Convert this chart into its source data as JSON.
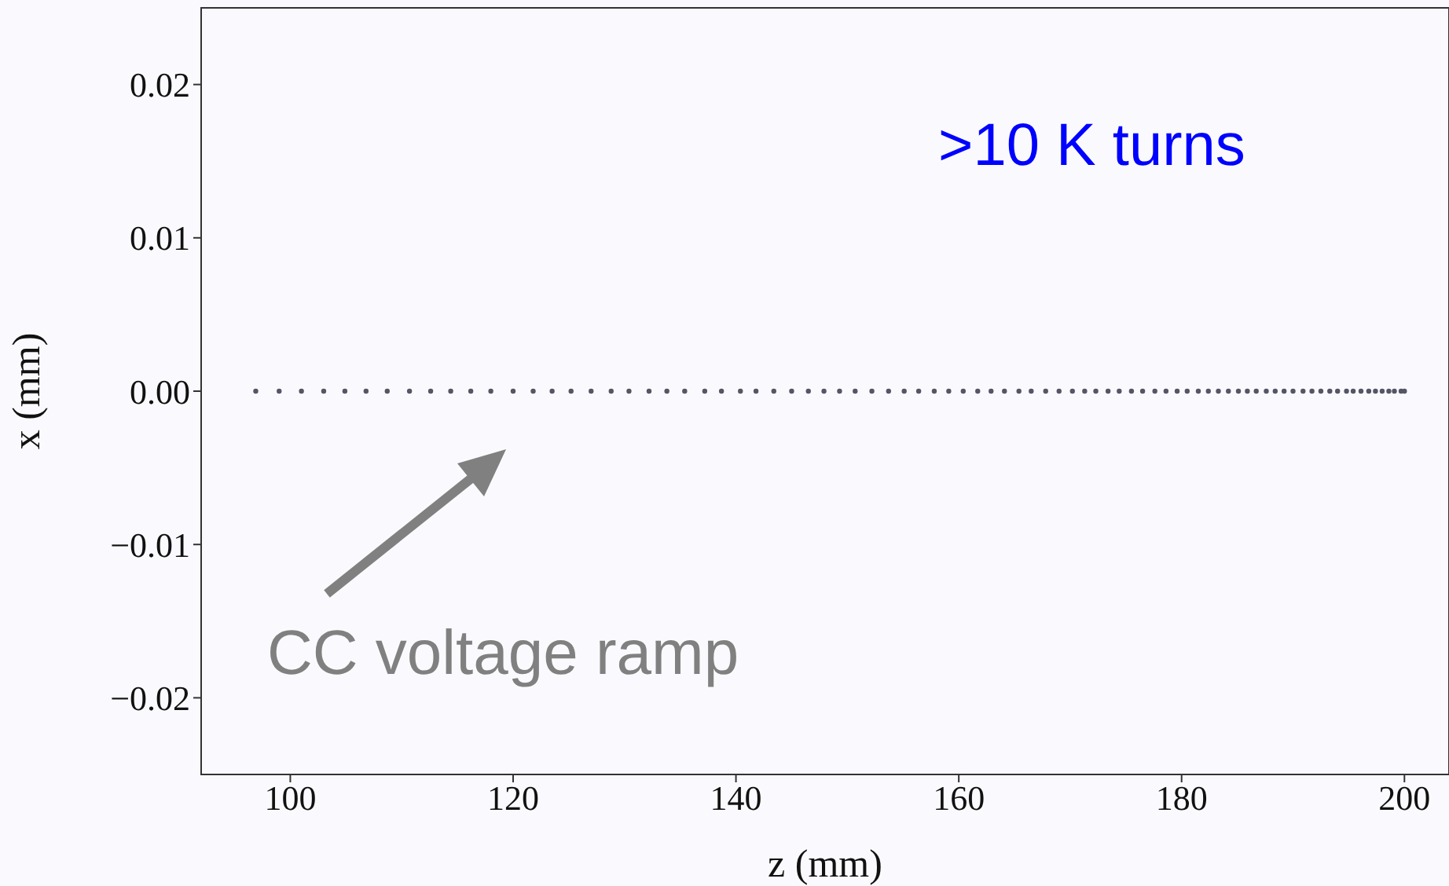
{
  "chart_data": {
    "type": "scatter",
    "xlabel": "z (mm)",
    "ylabel": "x (mm)",
    "x": [
      96.9,
      99.0,
      101.0,
      103.0,
      104.9,
      106.8,
      108.7,
      110.7,
      112.6,
      114.4,
      116.2,
      118.0,
      120.0,
      121.8,
      123.5,
      125.2,
      127.0,
      128.8,
      130.4,
      132.2,
      133.8,
      135.4,
      137.2,
      138.7,
      140.4,
      141.8,
      143.4,
      145.0,
      146.5,
      147.9,
      149.3,
      150.7,
      152.2,
      153.7,
      155.1,
      156.4,
      157.8,
      159.1,
      160.4,
      161.7,
      162.9,
      164.1,
      165.4,
      166.5,
      167.8,
      169.0,
      170.2,
      171.3,
      172.3,
      173.4,
      174.4,
      175.5,
      176.5,
      177.6,
      178.6,
      179.6,
      180.5,
      181.5,
      182.4,
      183.3,
      184.2,
      185.1,
      185.9,
      186.7,
      187.6,
      188.4,
      189.2,
      190.0,
      190.9,
      191.7,
      192.5,
      193.3,
      194.0,
      194.8,
      195.4,
      196.1,
      196.8,
      197.4,
      198.0,
      198.6,
      199.1,
      199.7,
      200.0
    ],
    "series": [
      {
        "color": "#555566",
        "values": [
          0,
          0,
          0,
          0,
          0,
          0,
          0,
          0,
          0,
          0,
          0,
          0,
          0,
          0,
          0,
          0,
          0,
          0,
          0,
          0,
          0,
          0,
          0,
          0,
          0,
          0,
          0,
          0,
          0,
          0,
          0,
          0,
          0,
          0,
          0,
          0,
          0,
          0,
          0,
          0,
          0,
          0,
          0,
          0,
          0,
          0,
          0,
          0,
          0,
          0,
          0,
          0,
          0,
          0,
          0,
          0,
          0,
          0,
          0,
          0,
          0,
          0,
          0,
          0,
          0,
          0,
          0,
          0,
          0,
          0,
          0,
          0,
          0,
          0,
          0,
          0,
          0,
          0,
          0,
          0,
          0,
          0,
          0
        ]
      }
    ],
    "xlim": [
      92,
      204
    ],
    "xticks": [
      100,
      120,
      140,
      160,
      180,
      200
    ],
    "ylim": [
      -0.025,
      0.025
    ],
    "yticks": [
      {
        "value": -0.02,
        "label": "−0.02"
      },
      {
        "value": -0.01,
        "label": "−0.01"
      },
      {
        "value": 0,
        "label": "0.00"
      },
      0.01,
      0.02
    ],
    "grid": false,
    "legend": false,
    "marker": "circle",
    "annotations": [
      ">10 K turns",
      "CC voltage ramp"
    ]
  }
}
